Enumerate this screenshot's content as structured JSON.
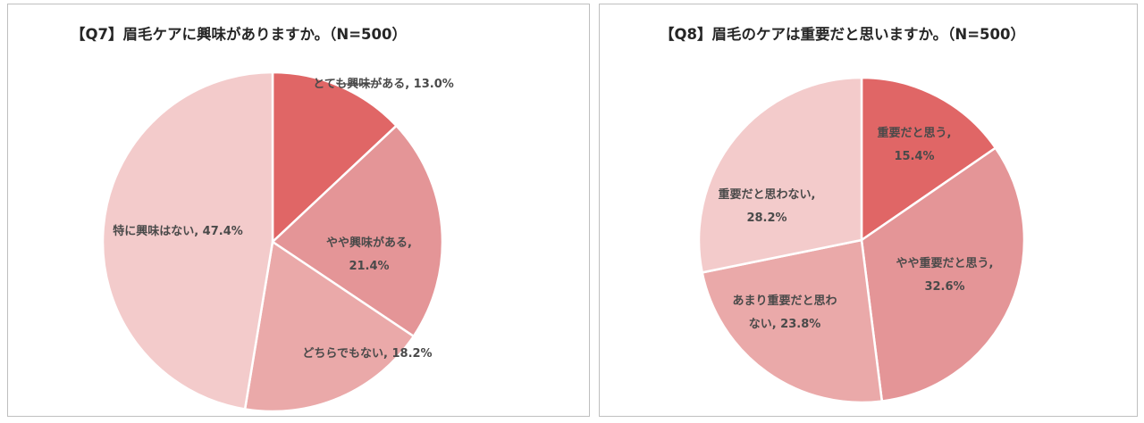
{
  "chart_data": [
    {
      "type": "pie",
      "title": "【Q7】眉毛ケアに興味がありますか。（N=500）",
      "slices": [
        {
          "label": "とても興味がある, 13.0%",
          "value": 13.0,
          "color": "#e06666"
        },
        {
          "label_lines": [
            "やや興味がある,",
            "21.4%"
          ],
          "value": 21.4,
          "color": "#e49597"
        },
        {
          "label": "どちらでもない, 18.2%",
          "value": 18.2,
          "color": "#eaa9a9"
        },
        {
          "label": "特に興味はない, 47.4%",
          "value": 47.4,
          "color": "#f3cbcb"
        }
      ]
    },
    {
      "type": "pie",
      "title": "【Q8】眉毛のケアは重要だと思いますか。（N=500）",
      "slices": [
        {
          "label_lines": [
            "重要だと思う,",
            "15.4%"
          ],
          "value": 15.4,
          "color": "#e06666"
        },
        {
          "label_lines": [
            "やや重要だと思う,",
            "32.6%"
          ],
          "value": 32.6,
          "color": "#e49597"
        },
        {
          "label_lines": [
            "あまり重要だと思わ",
            "ない, 23.8%"
          ],
          "value": 23.8,
          "color": "#eaa9a9"
        },
        {
          "label_lines": [
            "重要だと思わない,",
            "28.2%"
          ],
          "value": 28.2,
          "color": "#f3cbcb"
        }
      ]
    }
  ]
}
